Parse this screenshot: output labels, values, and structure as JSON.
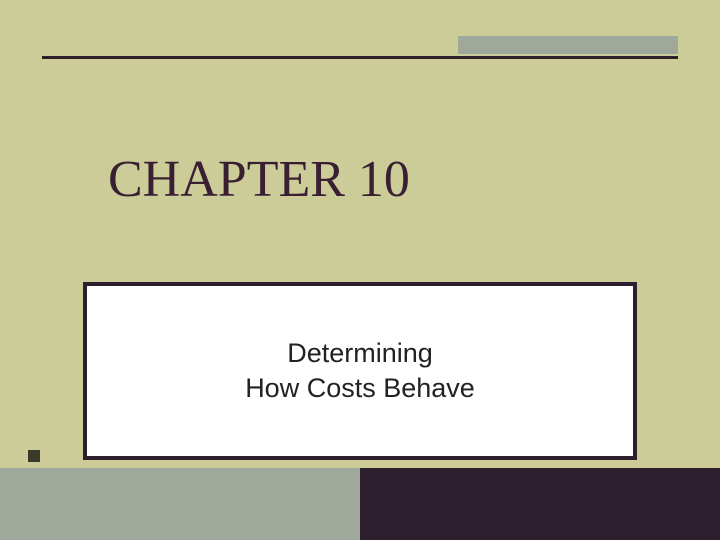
{
  "slide": {
    "chapter_title": "CHAPTER 10",
    "subtitle_line1": "Determining",
    "subtitle_line2": "How Costs Behave"
  },
  "style": {
    "background_color": "#cccc99",
    "rule_color": "#2d1f2d",
    "accent_color": "#a0a89c",
    "border_color": "#2d1f2d",
    "title_color": "#3a1f33",
    "subtitle_color": "#222222",
    "bottom_right_color": "#2d1f2d",
    "bottom_left_color": "#a0a89c",
    "title_fontsize": 52,
    "subtitle_fontsize": 27,
    "title_fontfamily": "Times New Roman",
    "subtitle_fontfamily": "Arial"
  }
}
